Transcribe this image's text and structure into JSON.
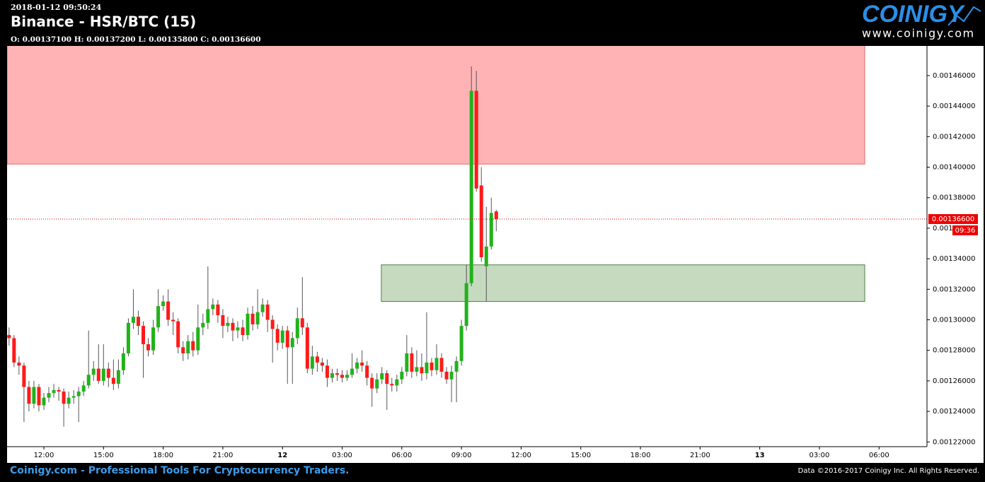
{
  "header": {
    "timestamp": "2018-01-12 09:50:24",
    "title": "Binance - HSR/BTC (15)",
    "ohlc": "O: 0.00137100 H: 0.00137200 L: 0.00135800 C: 0.00136600"
  },
  "logo": {
    "name": "COINIGY",
    "url": "www.coinigy.com"
  },
  "footer": {
    "tagline": "Coinigy.com - Professional Tools For Cryptocurrency Traders.",
    "copyright": "Data ©2016-2017 Coinigy Inc. All Rights Reserved."
  },
  "chart_data": {
    "type": "candlestick",
    "x": [
      10.25,
      10.5,
      10.75,
      11,
      11.25,
      11.5,
      11.75,
      12,
      12.25,
      12.5,
      12.75,
      13,
      13.25,
      13.5,
      13.75,
      14,
      14.25,
      14.5,
      14.75,
      15,
      15.25,
      15.5,
      15.75,
      16,
      16.25,
      16.5,
      16.75,
      17,
      17.25,
      17.5,
      17.75,
      18,
      18.25,
      18.5,
      18.75,
      19,
      19.25,
      19.5,
      19.75,
      20,
      20.25,
      20.5,
      20.75,
      21,
      21.25,
      21.5,
      21.75,
      22,
      22.25,
      22.5,
      22.75,
      23,
      23.25,
      23.5,
      23.75,
      24,
      24.25,
      24.5,
      24.75,
      25,
      25.25,
      25.5,
      25.75,
      26,
      26.25,
      26.5,
      26.75,
      27,
      27.25,
      27.5,
      27.75,
      28,
      28.25,
      28.5,
      28.75,
      29,
      29.25,
      29.5,
      29.75,
      30,
      30.25,
      30.5,
      30.75,
      31,
      31.25,
      31.5,
      31.75,
      32,
      32.25,
      32.5,
      32.75,
      33,
      33.25,
      33.5,
      33.75,
      34,
      34.25,
      34.5,
      34.75
    ],
    "open": [
      0.00129,
      0.001288,
      0.001272,
      0.00127,
      0.001256,
      0.001245,
      0.001256,
      0.001244,
      0.001249,
      0.001252,
      0.001254,
      0.001253,
      0.001245,
      0.001249,
      0.00125,
      0.001253,
      0.001257,
      0.001264,
      0.001268,
      0.00126,
      0.001268,
      0.001262,
      0.001258,
      0.001267,
      0.001278,
      0.001298,
      0.001302,
      0.001296,
      0.001284,
      0.00128,
      0.001295,
      0.001309,
      0.001312,
      0.0013,
      0.001299,
      0.001282,
      0.001278,
      0.001286,
      0.00128,
      0.001295,
      0.001298,
      0.001307,
      0.00131,
      0.001303,
      0.001296,
      0.001298,
      0.001293,
      0.001295,
      0.00129,
      0.001304,
      0.001297,
      0.001305,
      0.00131,
      0.0013,
      0.001294,
      0.001285,
      0.001293,
      0.001282,
      0.001288,
      0.001301,
      0.001295,
      0.001268,
      0.001276,
      0.001272,
      0.00127,
      0.001262,
      0.001265,
      0.001264,
      0.001262,
      0.001264,
      0.001268,
      0.001272,
      0.00127,
      0.001262,
      0.001255,
      0.001261,
      0.001265,
      0.001258,
      0.001257,
      0.001261,
      0.001266,
      0.001278,
      0.001266,
      0.001269,
      0.001265,
      0.001272,
      0.001267,
      0.001275,
      0.001266,
      0.001261,
      0.001266,
      0.001273,
      0.001296,
      0.001324,
      0.00145,
      0.001388,
      0.001335,
      0.001348,
      0.001371
    ],
    "high": [
      0.001295,
      0.00129,
      0.001276,
      0.001272,
      0.00126,
      0.00126,
      0.001258,
      0.001252,
      0.001256,
      0.001258,
      0.001256,
      0.001255,
      0.001253,
      0.001254,
      0.001256,
      0.00126,
      0.001293,
      0.001273,
      0.001284,
      0.001284,
      0.001272,
      0.001274,
      0.001274,
      0.001282,
      0.001301,
      0.00132,
      0.001306,
      0.001299,
      0.001288,
      0.0013,
      0.00132,
      0.001316,
      0.00132,
      0.001305,
      0.001301,
      0.001286,
      0.00129,
      0.001292,
      0.00131,
      0.001304,
      0.001335,
      0.001314,
      0.001313,
      0.001307,
      0.001302,
      0.001301,
      0.001299,
      0.0013,
      0.001308,
      0.001309,
      0.00132,
      0.001314,
      0.001313,
      0.001303,
      0.001297,
      0.001296,
      0.001296,
      0.001292,
      0.001308,
      0.001328,
      0.001298,
      0.001283,
      0.001279,
      0.001275,
      0.001274,
      0.001268,
      0.001268,
      0.001267,
      0.001267,
      0.001278,
      0.001275,
      0.00128,
      0.001273,
      0.001265,
      0.001265,
      0.001269,
      0.001267,
      0.001262,
      0.001264,
      0.001269,
      0.00129,
      0.001282,
      0.00128,
      0.001278,
      0.001305,
      0.001275,
      0.001284,
      0.001278,
      0.001269,
      0.00127,
      0.001276,
      0.0013,
      0.001336,
      0.001466,
      0.001463,
      0.0014,
      0.001374,
      0.00138,
      0.001372
    ],
    "low": [
      0.001283,
      0.001269,
      0.001264,
      0.001233,
      0.00124,
      0.001242,
      0.00124,
      0.001241,
      0.001246,
      0.001249,
      0.001247,
      0.00123,
      0.001242,
      0.001245,
      0.001233,
      0.00125,
      0.001255,
      0.00126,
      0.001258,
      0.001257,
      0.001256,
      0.001254,
      0.001255,
      0.001264,
      0.001276,
      0.001294,
      0.00129,
      0.001262,
      0.001276,
      0.001277,
      0.001292,
      0.001306,
      0.001296,
      0.00129,
      0.001278,
      0.001273,
      0.001274,
      0.001276,
      0.001277,
      0.00129,
      0.001294,
      0.001303,
      0.001298,
      0.001288,
      0.001292,
      0.001286,
      0.001288,
      0.001286,
      0.001287,
      0.001293,
      0.001294,
      0.001302,
      0.001292,
      0.001272,
      0.00128,
      0.001281,
      0.001258,
      0.001258,
      0.001284,
      0.00129,
      0.001265,
      0.001264,
      0.001266,
      0.001266,
      0.001256,
      0.001259,
      0.00126,
      0.001259,
      0.00126,
      0.001262,
      0.001265,
      0.001266,
      0.001257,
      0.001243,
      0.001252,
      0.001258,
      0.001241,
      0.001253,
      0.001253,
      0.001258,
      0.001263,
      0.001262,
      0.001263,
      0.00126,
      0.001261,
      0.001263,
      0.001264,
      0.001262,
      0.001258,
      0.001246,
      0.001246,
      0.00127,
      0.001293,
      0.001322,
      0.001384,
      0.001338,
      0.001312,
      0.001346,
      0.001358
    ],
    "close": [
      0.001288,
      0.001272,
      0.00127,
      0.001256,
      0.001245,
      0.001256,
      0.001244,
      0.001249,
      0.001252,
      0.001254,
      0.001253,
      0.001245,
      0.001249,
      0.00125,
      0.001253,
      0.001257,
      0.001264,
      0.001268,
      0.00126,
      0.001268,
      0.001262,
      0.001258,
      0.001267,
      0.001278,
      0.001298,
      0.001302,
      0.001296,
      0.001284,
      0.00128,
      0.001295,
      0.001309,
      0.001312,
      0.0013,
      0.001299,
      0.001282,
      0.001278,
      0.001286,
      0.00128,
      0.001295,
      0.001298,
      0.001307,
      0.00131,
      0.001303,
      0.001296,
      0.001298,
      0.001293,
      0.001295,
      0.00129,
      0.001304,
      0.001297,
      0.001305,
      0.00131,
      0.0013,
      0.001294,
      0.001285,
      0.001293,
      0.001282,
      0.001288,
      0.001301,
      0.001295,
      0.001268,
      0.001276,
      0.001272,
      0.00127,
      0.001262,
      0.001265,
      0.001264,
      0.001262,
      0.001264,
      0.001268,
      0.001272,
      0.00127,
      0.001262,
      0.001255,
      0.001261,
      0.001265,
      0.001258,
      0.001257,
      0.001261,
      0.001266,
      0.001278,
      0.001266,
      0.001269,
      0.001265,
      0.001272,
      0.001267,
      0.001275,
      0.001266,
      0.001261,
      0.001266,
      0.001273,
      0.001296,
      0.001324,
      0.00145,
      0.001386,
      0.001341,
      0.001348,
      0.00137,
      0.001366
    ],
    "up_color": "#22b21b",
    "down_color": "#ff1a1a",
    "wick_color": "#555555",
    "xlim": [
      10.15,
      56.41
    ],
    "xticks": [
      {
        "value": 12,
        "label": "12:00"
      },
      {
        "value": 15,
        "label": "15:00"
      },
      {
        "value": 18,
        "label": "18:00"
      },
      {
        "value": 21,
        "label": "21:00"
      },
      {
        "value": 24,
        "label": "12"
      },
      {
        "value": 27,
        "label": "03:00"
      },
      {
        "value": 30,
        "label": "06:00"
      },
      {
        "value": 33,
        "label": "09:00"
      },
      {
        "value": 36,
        "label": "12:00"
      },
      {
        "value": 39,
        "label": "15:00"
      },
      {
        "value": 42,
        "label": "18:00"
      },
      {
        "value": 45,
        "label": "21:00"
      },
      {
        "value": 48,
        "label": "13"
      },
      {
        "value": 51,
        "label": "03:00"
      },
      {
        "value": 54,
        "label": "06:00"
      }
    ],
    "ylim": [
      0.0012169,
      0.0014794
    ],
    "yticks": [
      {
        "value": 0.00122,
        "label": "0.00122000"
      },
      {
        "value": 0.00124,
        "label": "0.00124000"
      },
      {
        "value": 0.00126,
        "label": "0.00126000"
      },
      {
        "value": 0.00128,
        "label": "0.00128000"
      },
      {
        "value": 0.0013,
        "label": "0.00130000"
      },
      {
        "value": 0.00132,
        "label": "0.00132000"
      },
      {
        "value": 0.00134,
        "label": "0.00134000"
      },
      {
        "value": 0.00136,
        "label": "0.00136000"
      },
      {
        "value": 0.00138,
        "label": "0.00138000"
      },
      {
        "value": 0.0014,
        "label": "0.00140000"
      },
      {
        "value": 0.00142,
        "label": "0.00142000"
      },
      {
        "value": 0.00144,
        "label": "0.00144000"
      },
      {
        "value": 0.00146,
        "label": "0.00146000"
      }
    ],
    "zones": [
      {
        "x": [
          10.15,
          53.28
        ],
        "y": [
          0.001402,
          0.00148
        ],
        "color": "#ffb3b5",
        "border": "#e0686c"
      },
      {
        "x": [
          28.97,
          53.28
        ],
        "y": [
          0.001312,
          0.001336
        ],
        "color": "#c6dac0",
        "border": "#4f7f3f"
      }
    ],
    "last_price": {
      "value": 0.001366,
      "label": "0.00136600"
    },
    "countdown": "09:36"
  }
}
